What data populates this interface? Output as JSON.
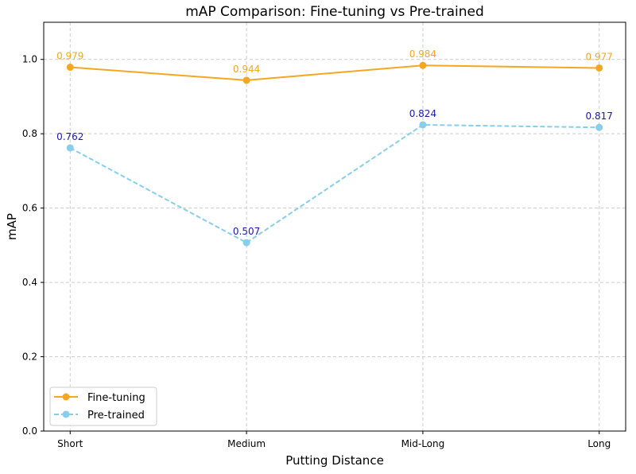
{
  "chart_data": {
    "type": "line",
    "title": "mAP Comparison: Fine-tuning vs Pre-trained",
    "xlabel": "Putting Distance",
    "ylabel": "mAP",
    "categories": [
      "Short",
      "Medium",
      "Mid-Long",
      "Long"
    ],
    "ylim": [
      0,
      1.1
    ],
    "yticks": [
      "0.0",
      "0.2",
      "0.4",
      "0.6",
      "0.8",
      "1.0"
    ],
    "grid": true,
    "legend_position": "lower-left",
    "series": [
      {
        "name": "Fine-tuning",
        "values": [
          0.979,
          0.944,
          0.984,
          0.977
        ],
        "labels": [
          "0.979",
          "0.944",
          "0.984",
          "0.977"
        ],
        "color": "#f5a623",
        "label_color": "#f5a623",
        "linestyle": "solid"
      },
      {
        "name": "Pre-trained",
        "values": [
          0.762,
          0.507,
          0.824,
          0.817
        ],
        "labels": [
          "0.762",
          "0.507",
          "0.824",
          "0.817"
        ],
        "color": "#87ceeb",
        "label_color": "#1a1ab0",
        "linestyle": "dashed"
      }
    ]
  }
}
